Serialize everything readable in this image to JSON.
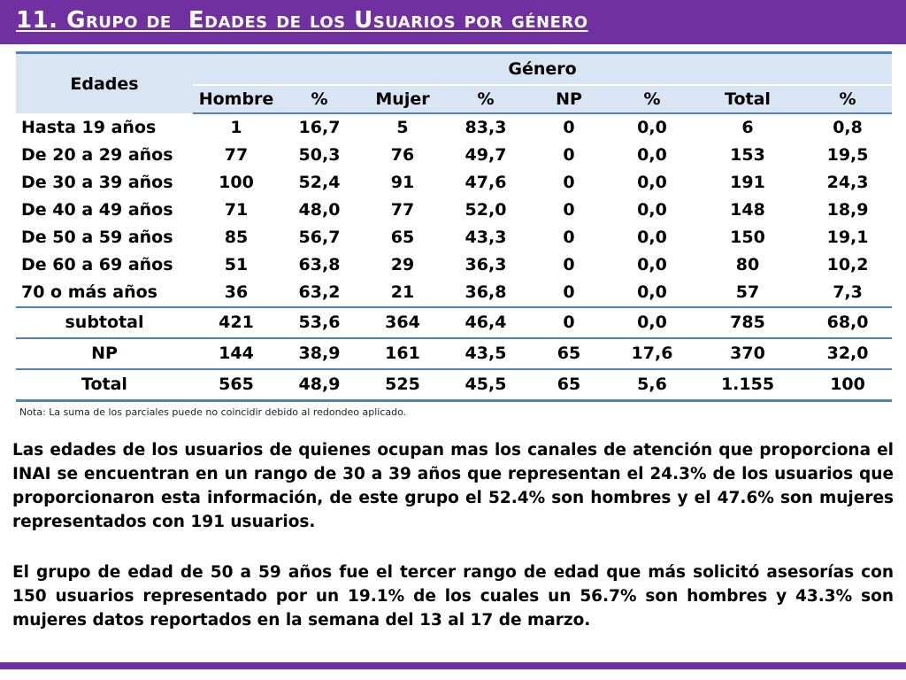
{
  "title": "11. Grupo de  Edades de los Usuarios por género",
  "table": {
    "header": {
      "edades": "Edades",
      "genero": "Género",
      "columns": [
        "Hombre",
        "%",
        "Mujer",
        "%",
        "NP",
        "%",
        "Total",
        "%"
      ]
    },
    "rows": [
      {
        "label": "Hasta 19 años",
        "values": [
          "1",
          "16,7",
          "5",
          "83,3",
          "0",
          "0,0",
          "6",
          "0,8"
        ]
      },
      {
        "label": "De 20 a 29 años",
        "values": [
          "77",
          "50,3",
          "76",
          "49,7",
          "0",
          "0,0",
          "153",
          "19,5"
        ]
      },
      {
        "label": "De 30 a 39 años",
        "values": [
          "100",
          "52,4",
          "91",
          "47,6",
          "0",
          "0,0",
          "191",
          "24,3"
        ]
      },
      {
        "label": "De 40 a 49 años",
        "values": [
          "71",
          "48,0",
          "77",
          "52,0",
          "0",
          "0,0",
          "148",
          "18,9"
        ]
      },
      {
        "label": "De 50 a 59 años",
        "values": [
          "85",
          "56,7",
          "65",
          "43,3",
          "0",
          "0,0",
          "150",
          "19,1"
        ]
      },
      {
        "label": "De 60 a 69 años",
        "values": [
          "51",
          "63,8",
          "29",
          "36,3",
          "0",
          "0,0",
          "80",
          "10,2"
        ]
      },
      {
        "label": "70 o más años",
        "values": [
          "36",
          "63,2",
          "21",
          "36,8",
          "0",
          "0,0",
          "57",
          "7,3"
        ]
      }
    ],
    "summary": [
      {
        "label": "subtotal",
        "values": [
          "421",
          "53,6",
          "364",
          "46,4",
          "0",
          "0,0",
          "785",
          "68,0"
        ]
      },
      {
        "label": "NP",
        "values": [
          "144",
          "38,9",
          "161",
          "43,5",
          "65",
          "17,6",
          "370",
          "32,0"
        ]
      },
      {
        "label": "Total",
        "values": [
          "565",
          "48,9",
          "525",
          "45,5",
          "65",
          "5,6",
          "1.155",
          "100"
        ]
      }
    ]
  },
  "note": "Nota: La suma de los parciales puede no coincidir debido al redondeo aplicado.",
  "paragraphs": [
    "Las edades de los usuarios de quienes ocupan mas los canales de atención que proporciona el INAI se encuentran en un rango de 30 a 39 años que representan el 24.3% de los usuarios que proporcionaron esta información, de este grupo el 52.4% son hombres y el 47.6% son mujeres representados con 191 usuarios.",
    "El grupo de edad de 50 a 59 años fue el tercer rango de edad que más solicitó asesorías con 150 usuarios representado por un 19.1% de los cuales un 56.7%  son hombres y 43.3% son mujeres datos reportados en la semana del 13 al 17 de marzo."
  ],
  "colors": {
    "accent": "#7030a0",
    "table_border": "#4f81bd",
    "header_fill": "#d9e5f3"
  }
}
